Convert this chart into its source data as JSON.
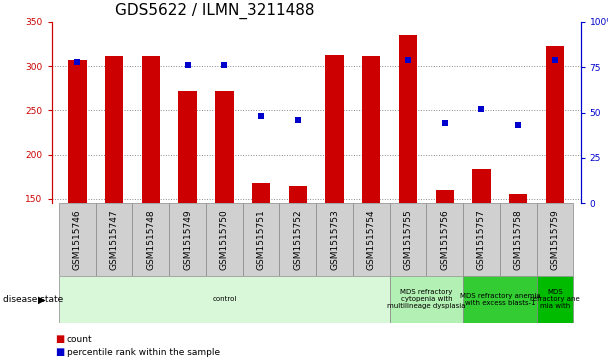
{
  "title": "GDS5622 / ILMN_3211488",
  "samples": [
    "GSM1515746",
    "GSM1515747",
    "GSM1515748",
    "GSM1515749",
    "GSM1515750",
    "GSM1515751",
    "GSM1515752",
    "GSM1515753",
    "GSM1515754",
    "GSM1515755",
    "GSM1515756",
    "GSM1515757",
    "GSM1515758",
    "GSM1515759"
  ],
  "counts": [
    307,
    311,
    311,
    272,
    272,
    168,
    165,
    313,
    311,
    335,
    160,
    184,
    156,
    323
  ],
  "percentiles": [
    78,
    null,
    null,
    76,
    76,
    48,
    46,
    null,
    null,
    79,
    44,
    52,
    43,
    79
  ],
  "ylim_left": [
    145,
    350
  ],
  "ylim_right": [
    0,
    100
  ],
  "yticks_left": [
    150,
    200,
    250,
    300,
    350
  ],
  "yticks_right": [
    0,
    25,
    50,
    75,
    100
  ],
  "bar_color": "#cc0000",
  "scatter_color": "#0000cc",
  "disease_groups": [
    {
      "label": "control",
      "start": 0,
      "end": 9,
      "color": "#d9f7d9"
    },
    {
      "label": "MDS refractory\ncytopenia with\nmultilineage dysplasia",
      "start": 9,
      "end": 11,
      "color": "#b3f0b3"
    },
    {
      "label": "MDS refractory anemia\nwith excess blasts-1",
      "start": 11,
      "end": 13,
      "color": "#33cc33"
    },
    {
      "label": "MDS\nrefractory ane\nmia with",
      "start": 13,
      "end": 14,
      "color": "#00bb00"
    }
  ],
  "disease_state_label": "disease state",
  "legend_count": "count",
  "legend_percentile": "percentile rank within the sample",
  "grid_color": "#888888",
  "title_fontsize": 11,
  "label_fontsize": 6.5,
  "bar_width": 0.5,
  "sample_box_color": "#d0d0d0",
  "sample_box_edge": "#888888"
}
